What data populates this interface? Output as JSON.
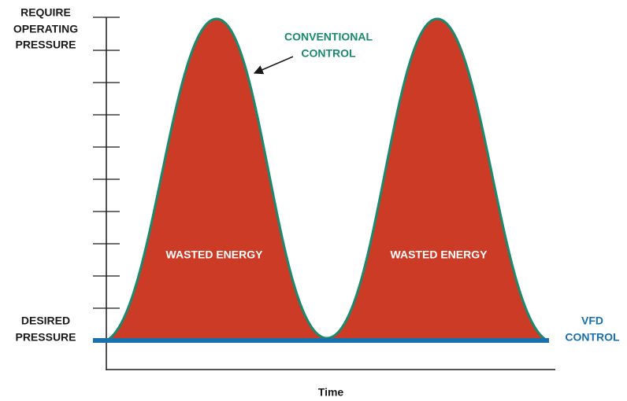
{
  "y_axis_top_label": [
    "REQUIRE",
    "OPERATING",
    "PRESSURE"
  ],
  "y_axis_bottom_label": [
    "DESIRED",
    "PRESSURE"
  ],
  "curve_label": [
    "CONVENTIONAL",
    "CONTROL"
  ],
  "baseline_label": [
    "VFD",
    "CONTROL"
  ],
  "areas": [
    "WASTED ENERGY",
    "WASTED ENERGY"
  ],
  "x_axis_label": "Time"
}
